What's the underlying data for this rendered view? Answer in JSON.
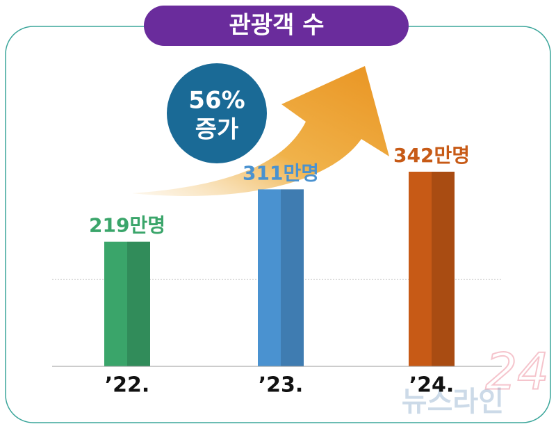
{
  "chart_data": {
    "type": "bar",
    "title": "관광객 수",
    "categories": [
      "’22.",
      "’23.",
      "’24."
    ],
    "values": [
      219,
      311,
      342
    ],
    "value_labels": [
      "219만명",
      "311만명",
      "342만명"
    ],
    "colors": [
      "#3aa56a",
      "#4a92d0",
      "#c75a16"
    ],
    "annotation": [
      "56%",
      "증가"
    ],
    "watermark": [
      "뉴스라인",
      "24"
    ]
  }
}
